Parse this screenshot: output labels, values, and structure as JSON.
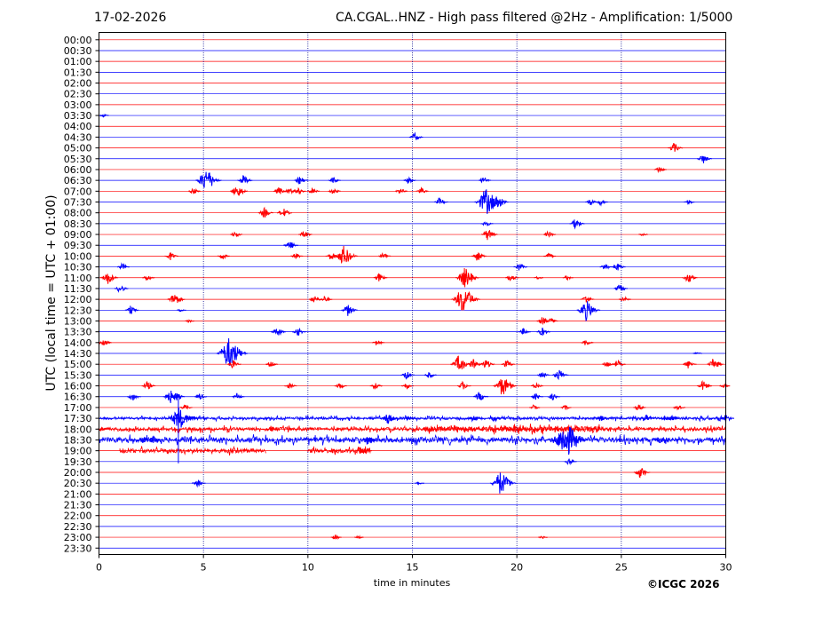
{
  "header": {
    "date": "17-02-2026",
    "title": "CA.CGAL..HNZ - High pass filtered @2Hz - Amplification: 1/5000"
  },
  "footer": {
    "copyright": "©ICGC 2026"
  },
  "chart_data": {
    "type": "line",
    "title": "CA.CGAL..HNZ - High pass filtered @2Hz - Amplification: 1/5000",
    "xlabel": "time in minutes",
    "ylabel": "UTC (local time = UTC + 01:00)",
    "xlim": [
      0,
      30
    ],
    "xticks": [
      0,
      5,
      10,
      15,
      20,
      25,
      30
    ],
    "rows": [
      "00:00",
      "00:30",
      "01:00",
      "01:30",
      "02:00",
      "02:30",
      "03:00",
      "03:30",
      "04:00",
      "04:30",
      "05:00",
      "05:30",
      "06:00",
      "06:30",
      "07:00",
      "07:30",
      "08:00",
      "08:30",
      "09:00",
      "09:30",
      "10:00",
      "10:30",
      "11:00",
      "11:30",
      "12:00",
      "12:30",
      "13:00",
      "13:30",
      "14:00",
      "14:30",
      "15:00",
      "15:30",
      "16:00",
      "16:30",
      "17:00",
      "17:30",
      "18:00",
      "18:30",
      "19:00",
      "19:30",
      "20:00",
      "20:30",
      "21:00",
      "21:30",
      "22:00",
      "22:30",
      "23:00",
      "23:30"
    ],
    "grid": {
      "vertical_dotted_at": [
        5,
        10,
        15,
        20,
        25
      ]
    },
    "colors": {
      "even_rows": "#ff0000",
      "odd_rows": "#0000ff",
      "grid": "#00008b"
    },
    "events": [
      {
        "row": "03:30",
        "t": 0.2,
        "amp": 2
      },
      {
        "row": "04:30",
        "t": 15.1,
        "amp": 5
      },
      {
        "row": "05:00",
        "t": 27.5,
        "amp": 6
      },
      {
        "row": "05:30",
        "t": 28.9,
        "amp": 6
      },
      {
        "row": "06:00",
        "t": 26.8,
        "amp": 4
      },
      {
        "row": "06:30",
        "t": 5.1,
        "amp": 14
      },
      {
        "row": "06:30",
        "t": 6.9,
        "amp": 6
      },
      {
        "row": "06:30",
        "t": 9.6,
        "amp": 5
      },
      {
        "row": "06:30",
        "t": 11.2,
        "amp": 4
      },
      {
        "row": "06:30",
        "t": 14.8,
        "amp": 4
      },
      {
        "row": "06:30",
        "t": 18.4,
        "amp": 4
      },
      {
        "row": "07:00",
        "t": 4.5,
        "amp": 4
      },
      {
        "row": "07:00",
        "t": 6.6,
        "amp": 8
      },
      {
        "row": "07:00",
        "t": 8.6,
        "amp": 5
      },
      {
        "row": "07:00",
        "t": 9.1,
        "amp": 4
      },
      {
        "row": "07:00",
        "t": 9.5,
        "amp": 5
      },
      {
        "row": "07:00",
        "t": 10.2,
        "amp": 4
      },
      {
        "row": "07:00",
        "t": 11.2,
        "amp": 4
      },
      {
        "row": "07:00",
        "t": 14.4,
        "amp": 4
      },
      {
        "row": "07:00",
        "t": 15.4,
        "amp": 4
      },
      {
        "row": "07:30",
        "t": 16.3,
        "amp": 5
      },
      {
        "row": "07:30",
        "t": 18.5,
        "amp": 16
      },
      {
        "row": "07:30",
        "t": 19.0,
        "amp": 10
      },
      {
        "row": "07:30",
        "t": 23.5,
        "amp": 4
      },
      {
        "row": "07:30",
        "t": 24.0,
        "amp": 4
      },
      {
        "row": "07:30",
        "t": 28.2,
        "amp": 3
      },
      {
        "row": "08:00",
        "t": 7.9,
        "amp": 6
      },
      {
        "row": "08:00",
        "t": 8.8,
        "amp": 6
      },
      {
        "row": "08:30",
        "t": 22.8,
        "amp": 6
      },
      {
        "row": "08:30",
        "t": 18.5,
        "amp": 4
      },
      {
        "row": "09:00",
        "t": 6.5,
        "amp": 4
      },
      {
        "row": "09:00",
        "t": 9.8,
        "amp": 5
      },
      {
        "row": "09:00",
        "t": 18.6,
        "amp": 7
      },
      {
        "row": "09:00",
        "t": 21.5,
        "amp": 4
      },
      {
        "row": "09:00",
        "t": 26.0,
        "amp": 2
      },
      {
        "row": "09:30",
        "t": 9.1,
        "amp": 6
      },
      {
        "row": "10:00",
        "t": 3.4,
        "amp": 5
      },
      {
        "row": "10:00",
        "t": 5.9,
        "amp": 4
      },
      {
        "row": "10:00",
        "t": 9.4,
        "amp": 4
      },
      {
        "row": "10:00",
        "t": 11.1,
        "amp": 5
      },
      {
        "row": "10:00",
        "t": 11.7,
        "amp": 12
      },
      {
        "row": "10:00",
        "t": 13.6,
        "amp": 4
      },
      {
        "row": "10:00",
        "t": 18.1,
        "amp": 6
      },
      {
        "row": "10:00",
        "t": 21.5,
        "amp": 4
      },
      {
        "row": "10:30",
        "t": 1.1,
        "amp": 4
      },
      {
        "row": "10:30",
        "t": 20.1,
        "amp": 5
      },
      {
        "row": "10:30",
        "t": 24.2,
        "amp": 4
      },
      {
        "row": "10:30",
        "t": 24.8,
        "amp": 5
      },
      {
        "row": "11:00",
        "t": 0.4,
        "amp": 8
      },
      {
        "row": "11:00",
        "t": 2.3,
        "amp": 4
      },
      {
        "row": "11:00",
        "t": 13.4,
        "amp": 5
      },
      {
        "row": "11:00",
        "t": 19.7,
        "amp": 5
      },
      {
        "row": "11:00",
        "t": 21.0,
        "amp": 2
      },
      {
        "row": "11:00",
        "t": 22.4,
        "amp": 3
      },
      {
        "row": "11:00",
        "t": 28.2,
        "amp": 6
      },
      {
        "row": "11:00",
        "t": 17.5,
        "amp": 12
      },
      {
        "row": "11:30",
        "t": 1.0,
        "amp": 5
      },
      {
        "row": "11:30",
        "t": 24.9,
        "amp": 5
      },
      {
        "row": "12:00",
        "t": 3.6,
        "amp": 8
      },
      {
        "row": "12:00",
        "t": 10.3,
        "amp": 5
      },
      {
        "row": "12:00",
        "t": 10.8,
        "amp": 4
      },
      {
        "row": "12:00",
        "t": 17.4,
        "amp": 16
      },
      {
        "row": "12:00",
        "t": 23.3,
        "amp": 5
      },
      {
        "row": "12:00",
        "t": 25.1,
        "amp": 4
      },
      {
        "row": "12:30",
        "t": 1.5,
        "amp": 5
      },
      {
        "row": "12:30",
        "t": 3.9,
        "amp": 2
      },
      {
        "row": "12:30",
        "t": 11.9,
        "amp": 7
      },
      {
        "row": "12:30",
        "t": 23.3,
        "amp": 12
      },
      {
        "row": "13:00",
        "t": 21.2,
        "amp": 5
      },
      {
        "row": "13:00",
        "t": 21.6,
        "amp": 4
      },
      {
        "row": "13:00",
        "t": 4.3,
        "amp": 2
      },
      {
        "row": "13:30",
        "t": 8.5,
        "amp": 6
      },
      {
        "row": "13:30",
        "t": 9.5,
        "amp": 5
      },
      {
        "row": "13:30",
        "t": 20.3,
        "amp": 4
      },
      {
        "row": "13:30",
        "t": 21.2,
        "amp": 5
      },
      {
        "row": "14:00",
        "t": 0.2,
        "amp": 5
      },
      {
        "row": "14:00",
        "t": 13.3,
        "amp": 4
      },
      {
        "row": "14:00",
        "t": 23.3,
        "amp": 4
      },
      {
        "row": "14:30",
        "t": 6.2,
        "amp": 18
      },
      {
        "row": "14:30",
        "t": 28.6,
        "amp": 2
      },
      {
        "row": "15:00",
        "t": 6.4,
        "amp": 5
      },
      {
        "row": "15:00",
        "t": 8.2,
        "amp": 4
      },
      {
        "row": "15:00",
        "t": 17.2,
        "amp": 10
      },
      {
        "row": "15:00",
        "t": 17.9,
        "amp": 6
      },
      {
        "row": "15:00",
        "t": 18.5,
        "amp": 6
      },
      {
        "row": "15:00",
        "t": 19.5,
        "amp": 5
      },
      {
        "row": "15:00",
        "t": 24.3,
        "amp": 4
      },
      {
        "row": "15:00",
        "t": 24.8,
        "amp": 5
      },
      {
        "row": "15:00",
        "t": 28.2,
        "amp": 5
      },
      {
        "row": "15:00",
        "t": 29.4,
        "amp": 7
      },
      {
        "row": "15:30",
        "t": 14.7,
        "amp": 5
      },
      {
        "row": "15:30",
        "t": 15.8,
        "amp": 4
      },
      {
        "row": "15:30",
        "t": 21.2,
        "amp": 4
      },
      {
        "row": "15:30",
        "t": 22.0,
        "amp": 7
      },
      {
        "row": "16:00",
        "t": 2.3,
        "amp": 5
      },
      {
        "row": "16:00",
        "t": 9.1,
        "amp": 4
      },
      {
        "row": "16:00",
        "t": 11.5,
        "amp": 4
      },
      {
        "row": "16:00",
        "t": 13.2,
        "amp": 4
      },
      {
        "row": "16:00",
        "t": 14.7,
        "amp": 4
      },
      {
        "row": "16:00",
        "t": 17.4,
        "amp": 5
      },
      {
        "row": "16:00",
        "t": 19.3,
        "amp": 12
      },
      {
        "row": "16:00",
        "t": 20.9,
        "amp": 4
      },
      {
        "row": "16:00",
        "t": 28.9,
        "amp": 6
      },
      {
        "row": "16:00",
        "t": 29.9,
        "amp": 3
      },
      {
        "row": "16:30",
        "t": 1.6,
        "amp": 5
      },
      {
        "row": "16:30",
        "t": 3.4,
        "amp": 8
      },
      {
        "row": "16:30",
        "t": 3.7,
        "amp": 5
      },
      {
        "row": "16:30",
        "t": 4.8,
        "amp": 4
      },
      {
        "row": "16:30",
        "t": 6.6,
        "amp": 4
      },
      {
        "row": "16:30",
        "t": 18.2,
        "amp": 6
      },
      {
        "row": "16:30",
        "t": 20.9,
        "amp": 4
      },
      {
        "row": "16:30",
        "t": 21.7,
        "amp": 4
      },
      {
        "row": "17:00",
        "t": 4.1,
        "amp": 4
      },
      {
        "row": "17:00",
        "t": 20.8,
        "amp": 3
      },
      {
        "row": "17:00",
        "t": 22.3,
        "amp": 3
      },
      {
        "row": "17:00",
        "t": 25.8,
        "amp": 4
      },
      {
        "row": "17:00",
        "t": 27.7,
        "amp": 4
      },
      {
        "row": "17:30",
        "t": 3.8,
        "amp": 14
      },
      {
        "row": "17:30",
        "t": 4.4,
        "amp": 4
      },
      {
        "row": "17:30",
        "t": 13.8,
        "amp": 7
      },
      {
        "row": "17:30",
        "t": 14.8,
        "amp": 3
      },
      {
        "row": "17:30",
        "t": 17.9,
        "amp": 4
      },
      {
        "row": "17:30",
        "t": 18.9,
        "amp": 4
      },
      {
        "row": "17:30",
        "t": 24.0,
        "amp": 4
      },
      {
        "row": "17:30",
        "t": 26.2,
        "amp": 4
      },
      {
        "row": "17:30",
        "t": 27.1,
        "amp": 4
      },
      {
        "row": "17:30",
        "t": 27.4,
        "amp": 4
      },
      {
        "row": "17:30",
        "t": 30.0,
        "amp": 5
      },
      {
        "row": "18:00",
        "t": 0.1,
        "amp": 2
      },
      {
        "row": "18:00",
        "t": 8.2,
        "amp": 4
      },
      {
        "row": "18:30",
        "t": 2.1,
        "amp": 4
      },
      {
        "row": "18:30",
        "t": 2.6,
        "amp": 5
      },
      {
        "row": "18:30",
        "t": 12.9,
        "amp": 6
      },
      {
        "row": "18:30",
        "t": 22.3,
        "amp": 22
      },
      {
        "row": "18:30",
        "t": 26.8,
        "amp": 4
      },
      {
        "row": "19:00",
        "t": 11.2,
        "amp": 3
      },
      {
        "row": "19:00",
        "t": 12.5,
        "amp": 4
      },
      {
        "row": "19:00",
        "t": 12.7,
        "amp": 4
      },
      {
        "row": "19:30",
        "t": 22.5,
        "amp": 4
      },
      {
        "row": "20:00",
        "t": 25.9,
        "amp": 7
      },
      {
        "row": "20:30",
        "t": 4.7,
        "amp": 5
      },
      {
        "row": "20:30",
        "t": 15.3,
        "amp": 2
      },
      {
        "row": "20:30",
        "t": 19.2,
        "amp": 14
      },
      {
        "row": "23:00",
        "t": 11.3,
        "amp": 3
      },
      {
        "row": "23:00",
        "t": 12.4,
        "amp": 2
      },
      {
        "row": "23:00",
        "t": 21.2,
        "amp": 2
      }
    ],
    "noisy_segments": [
      {
        "row": "17:30",
        "from": 0,
        "to": 30,
        "amp": 1.8
      },
      {
        "row": "18:00",
        "from": 0,
        "to": 30,
        "amp": 2.5
      },
      {
        "row": "18:30",
        "from": 0,
        "to": 30,
        "amp": 3.5
      },
      {
        "row": "19:00",
        "from": 1,
        "to": 8,
        "amp": 3
      },
      {
        "row": "19:00",
        "from": 10,
        "to": 13,
        "amp": 3
      },
      {
        "row": "18:00",
        "from": 15.5,
        "to": 24,
        "amp": 3.5
      }
    ],
    "spike": {
      "row": "17:30",
      "t": 3.8,
      "from": "16:30",
      "to": "19:30"
    }
  }
}
